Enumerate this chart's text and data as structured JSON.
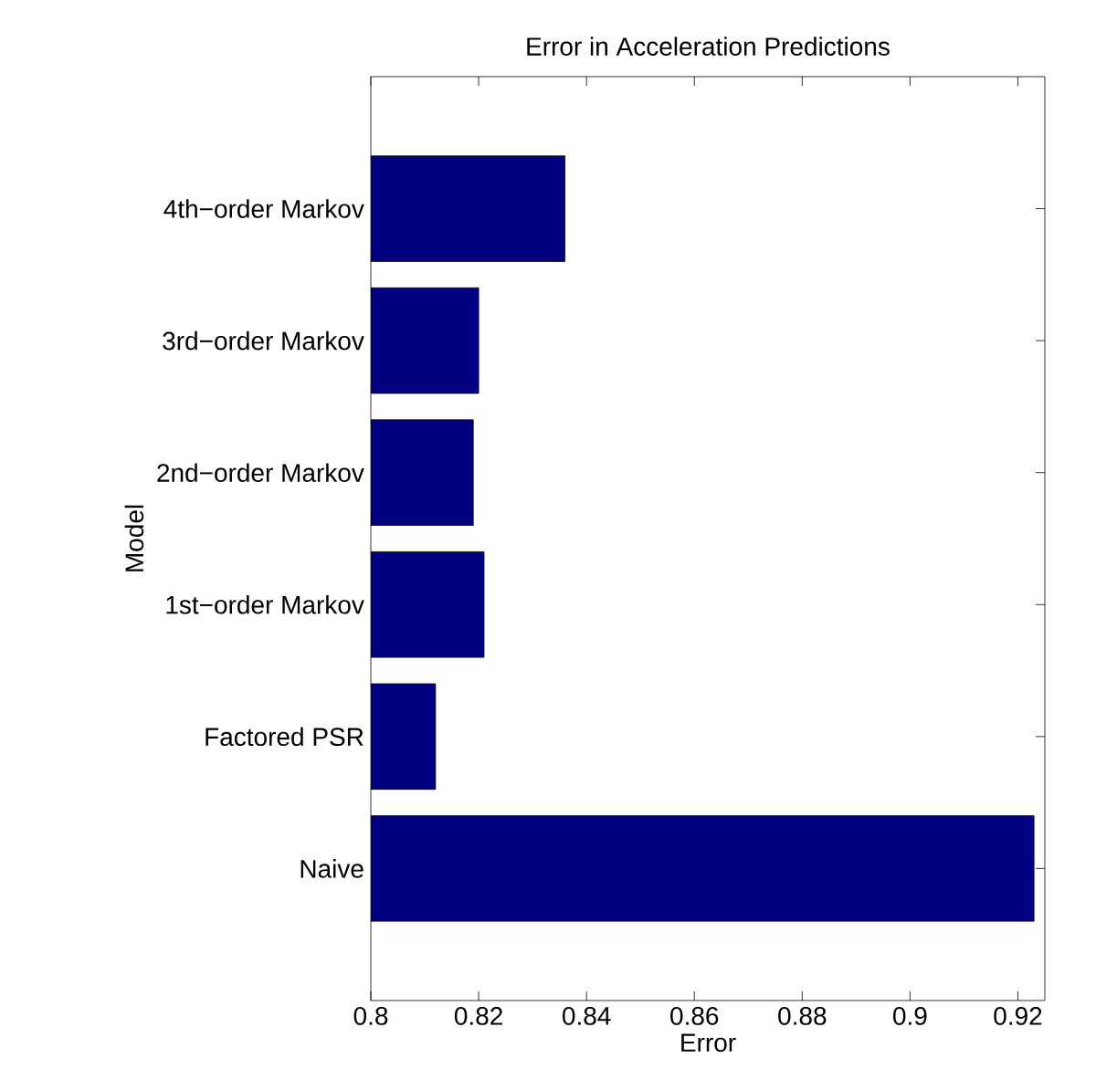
{
  "chart_data": {
    "type": "bar",
    "orientation": "horizontal",
    "title": "Error in Acceleration Predictions",
    "xlabel": "Error",
    "ylabel": "Model",
    "categories": [
      "4th−order Markov",
      "3rd−order Markov",
      "2nd−order Markov",
      "1st−order Markov",
      "Factored PSR",
      "Naive"
    ],
    "values": [
      0.836,
      0.82,
      0.819,
      0.821,
      0.812,
      0.923
    ],
    "color": "#000080",
    "xlim": [
      0.8,
      0.925
    ],
    "xticks": [
      0.8,
      0.82,
      0.84,
      0.86,
      0.88,
      0.9,
      0.92
    ]
  }
}
